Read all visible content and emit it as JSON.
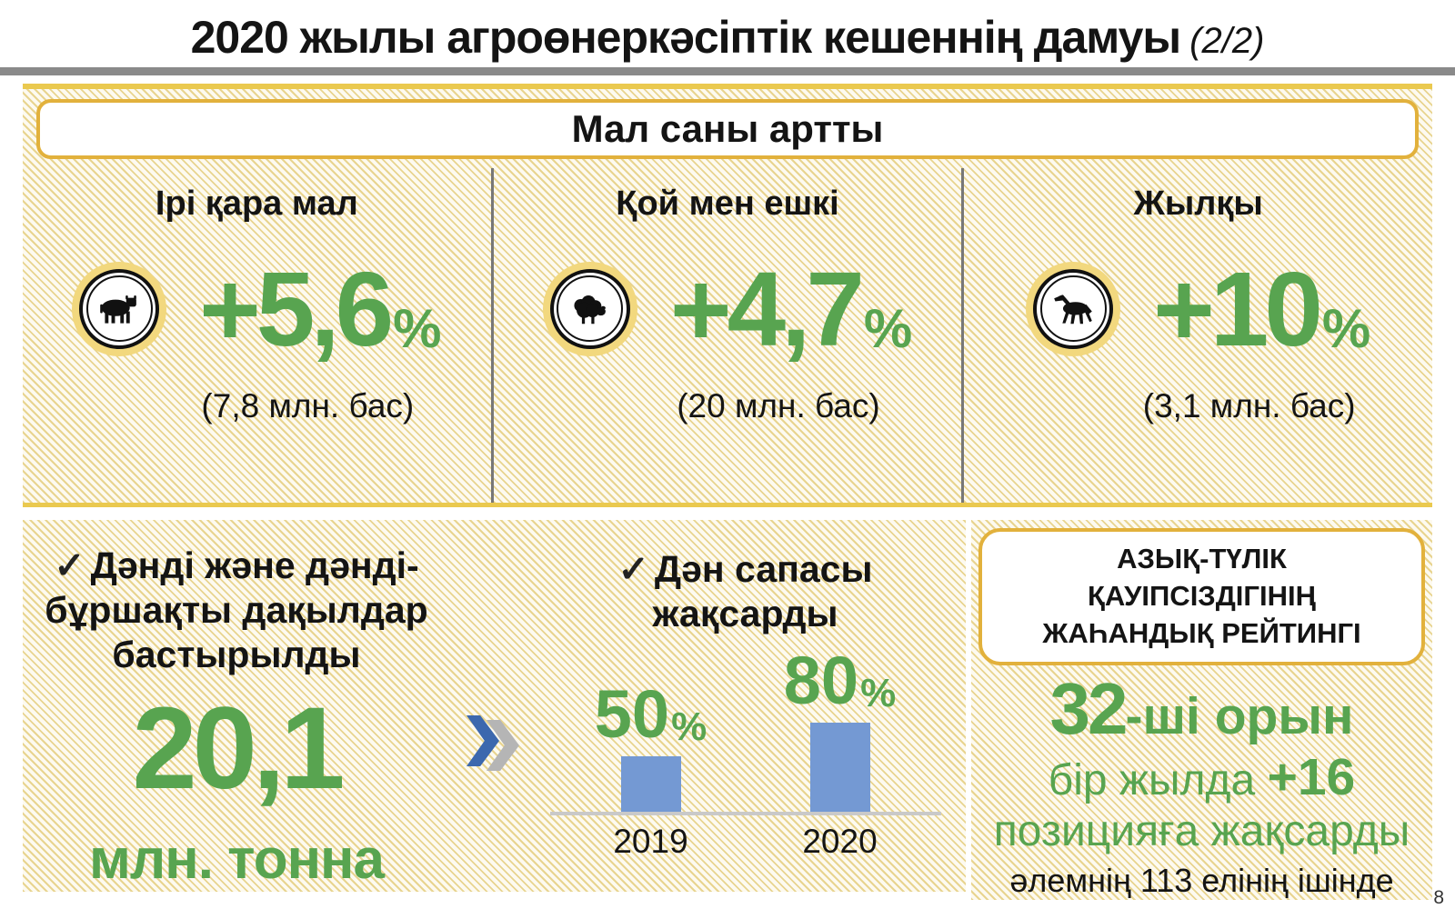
{
  "page": {
    "title": "2020 жылы агроөнеркәсіптік кешеннің дамуы",
    "title_suffix": "(2/2)",
    "page_number": "8"
  },
  "livestock": {
    "header": "Мал саны артты",
    "items": [
      {
        "label": "Ірі қара мал",
        "icon": "cow-icon",
        "value": "+5,6",
        "unit": "%",
        "note": "(7,8 млн. бас)"
      },
      {
        "label": "Қой мен ешкі",
        "icon": "sheep-icon",
        "value": "+4,7",
        "unit": "%",
        "note": "(20 млн. бас)"
      },
      {
        "label": "Жылқы",
        "icon": "horse-icon",
        "value": "+10",
        "unit": "%",
        "note": "(3,1 млн. бас)"
      }
    ]
  },
  "grain": {
    "checkmark": "✓",
    "line1": "Дәнді және дәнді-",
    "line2": "бұршақты дақылдар",
    "line3": "бастырылды",
    "amount": "20,1",
    "amount_unit": "млн. тонна",
    "chevron_icon": "double-chevron-icon"
  },
  "quality": {
    "checkmark": "✓",
    "title_line1": "Дән сапасы",
    "title_line2": "жақсарды"
  },
  "chart_data": {
    "type": "bar",
    "categories": [
      "2019",
      "2020"
    ],
    "values": [
      50,
      80
    ],
    "unit": "%",
    "title": "Дән сапасы жақсарды",
    "xlabel": "",
    "ylabel": "",
    "ylim": [
      0,
      100
    ],
    "grid": false,
    "legend": false,
    "bar_color": "#7499d3"
  },
  "rating": {
    "header_line1": "АЗЫҚ-ТҮЛІК",
    "header_line2": "ҚАУІПСІЗДІГІНІҢ",
    "header_line3": "ЖАҺАНДЫҚ РЕЙТИНГІ",
    "rank_number": "32",
    "rank_suffix": "-ші орын",
    "line2_prefix": "бір жылда ",
    "line2_bold": "+16",
    "line3": "позицияға жақсарды",
    "line4": "әлемнің 113 елінің ішінде"
  },
  "colors": {
    "green": "#58a450",
    "gold-border": "#e2b13c",
    "gold-strip": "#eac94f",
    "badge-ring": "#f2d87e",
    "hatch": "#e8d48f",
    "bar-blue": "#7499d3",
    "chevron-blue": "#3c68ae",
    "chevron-gray": "#b5b5b5",
    "divider-gray": "#777777",
    "title-rule-gray": "#8a8a8a",
    "baseline-gray": "#c9c9c9",
    "text-black": "#141414"
  }
}
